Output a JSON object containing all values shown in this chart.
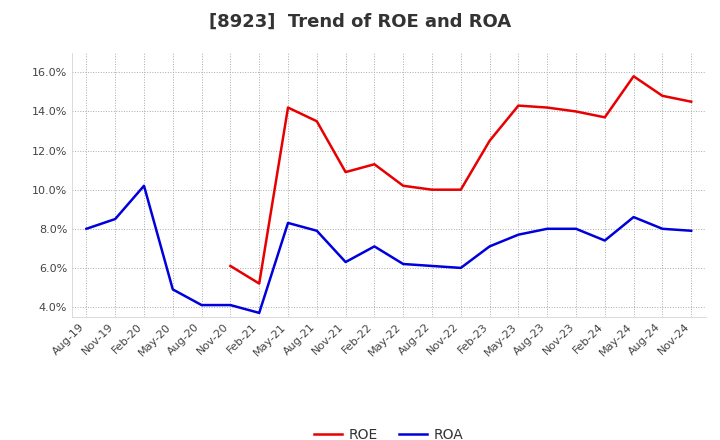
{
  "title": "[8923]  Trend of ROE and ROA",
  "x_labels": [
    "Aug-19",
    "Nov-19",
    "Feb-20",
    "May-20",
    "Aug-20",
    "Nov-20",
    "Feb-21",
    "May-21",
    "Aug-21",
    "Nov-21",
    "Feb-22",
    "May-22",
    "Aug-22",
    "Nov-22",
    "Feb-23",
    "May-23",
    "Aug-23",
    "Nov-23",
    "Feb-24",
    "May-24",
    "Aug-24",
    "Nov-24"
  ],
  "roe": [
    null,
    null,
    null,
    null,
    null,
    6.1,
    5.2,
    14.2,
    13.5,
    10.9,
    11.3,
    10.2,
    10.0,
    10.0,
    12.5,
    14.3,
    14.2,
    14.0,
    13.7,
    15.8,
    14.8,
    14.5
  ],
  "roa": [
    8.0,
    8.5,
    10.2,
    4.9,
    4.1,
    4.1,
    3.7,
    8.3,
    7.9,
    6.3,
    7.1,
    6.2,
    6.1,
    6.0,
    7.1,
    7.7,
    8.0,
    8.0,
    7.4,
    8.6,
    8.0,
    7.9
  ],
  "roe_color": "#e80000",
  "roa_color": "#0000dd",
  "ylim": [
    3.5,
    17.0
  ],
  "yticks": [
    4.0,
    6.0,
    8.0,
    10.0,
    12.0,
    14.0,
    16.0
  ],
  "background_color": "#ffffff",
  "grid_color": "#aaaaaa",
  "title_fontsize": 13,
  "legend_fontsize": 10,
  "tick_fontsize": 8
}
